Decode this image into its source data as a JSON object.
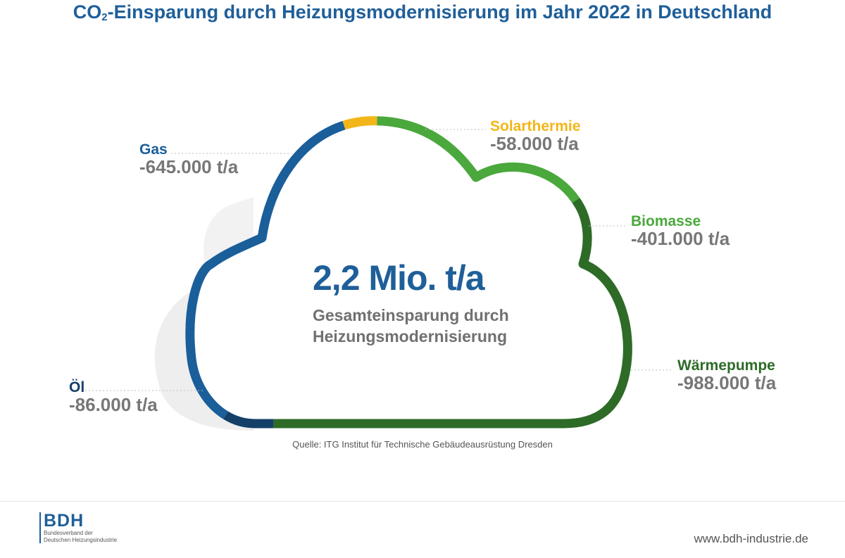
{
  "title_main": "CO",
  "title_sub": "2",
  "title_rest": "-Einsparung durch Heizungsmodernisierung im Jahr 2022 in Deutschland",
  "center": {
    "value": "2,2 Mio. t/a",
    "caption_line1": "Gesamteinsparung durch",
    "caption_line2": "Heizungsmodernisierung"
  },
  "source": "Quelle: ITG Institut für Technische Gebäudeausrüstung Dresden",
  "logo": {
    "name": "BDH",
    "subtitle_line1": "Bundesverband der",
    "subtitle_line2": "Deutschen Heizungsindustrie"
  },
  "website": "www.bdh-industrie.de",
  "colors": {
    "gas": "#1a5e9a",
    "solarthermie": "#f2b619",
    "biomasse": "#4aa83c",
    "waermepumpe": "#2d6b27",
    "oel": "#143f69",
    "title": "#1f5f99",
    "value_gray": "#777777"
  },
  "chart_data": {
    "type": "pie",
    "title": "CO₂-Einsparung durch Heizungsmodernisierung im Jahr 2022 in Deutschland",
    "total_label": "2,2 Mio. t/a",
    "unit": "t/a",
    "categories": [
      "Gas",
      "Solarthermie",
      "Biomasse",
      "Wärmepumpe",
      "Öl"
    ],
    "values": [
      -645000,
      -58000,
      -401000,
      -988000,
      -86000
    ],
    "value_labels": [
      "-645.000 t/a",
      "-58.000 t/a",
      "-401.000 t/a",
      "-988.000 t/a",
      "-86.000 t/a"
    ]
  }
}
